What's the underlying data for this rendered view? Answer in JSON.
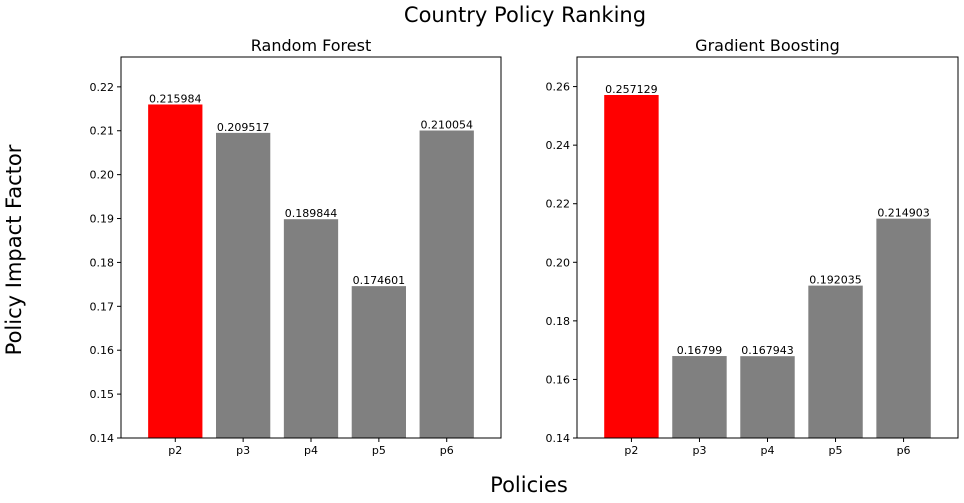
{
  "figure": {
    "title": "Country Policy Ranking",
    "xlabel": "Policies",
    "ylabel": "Policy Impact Factor"
  },
  "chart_data": [
    {
      "type": "bar",
      "title": "Random Forest",
      "categories": [
        "p2",
        "p3",
        "p4",
        "p5",
        "p6"
      ],
      "values": [
        0.215984,
        0.209517,
        0.189844,
        0.174601,
        0.210054
      ],
      "value_labels": [
        "0.215984",
        "0.209517",
        "0.189844",
        "0.174601",
        "0.210054"
      ],
      "colors": [
        "#ff0000",
        "#808080",
        "#808080",
        "#808080",
        "#808080"
      ],
      "ylim": [
        0.14,
        0.2268
      ],
      "yticks": [
        0.14,
        0.15,
        0.16,
        0.17,
        0.18,
        0.19,
        0.2,
        0.21,
        0.22
      ],
      "ytick_labels": [
        "0.14",
        "0.15",
        "0.16",
        "0.17",
        "0.18",
        "0.19",
        "0.20",
        "0.21",
        "0.22"
      ],
      "grid": false
    },
    {
      "type": "bar",
      "title": "Gradient Boosting",
      "categories": [
        "p2",
        "p3",
        "p4",
        "p5",
        "p6"
      ],
      "values": [
        0.257129,
        0.16799,
        0.167943,
        0.192035,
        0.214903
      ],
      "value_labels": [
        "0.257129",
        "0.16799",
        "0.167943",
        "0.192035",
        "0.214903"
      ],
      "colors": [
        "#ff0000",
        "#808080",
        "#808080",
        "#808080",
        "#808080"
      ],
      "ylim": [
        0.14,
        0.2701
      ],
      "yticks": [
        0.14,
        0.16,
        0.18,
        0.2,
        0.22,
        0.24,
        0.26
      ],
      "ytick_labels": [
        "0.14",
        "0.16",
        "0.18",
        "0.20",
        "0.22",
        "0.24",
        "0.26"
      ],
      "grid": false
    }
  ]
}
